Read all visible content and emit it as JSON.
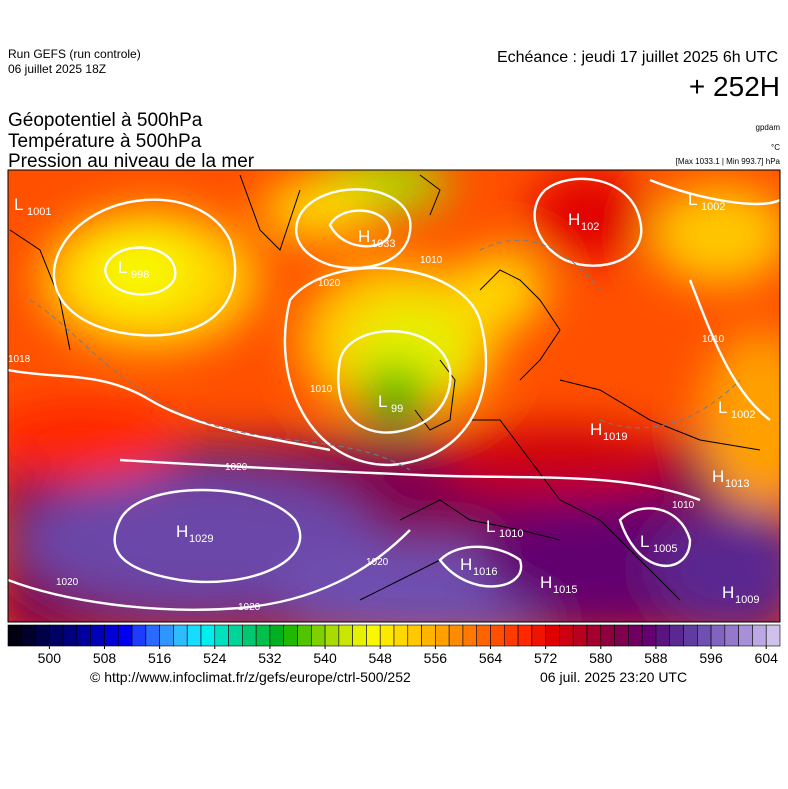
{
  "header": {
    "run": "Run GEFS (run controle)",
    "run_date": "06 juillet 2025 18Z",
    "echeance": "Echéance : jeudi 17 juillet 2025 6h UTC",
    "lead": "+ 252H",
    "titles": [
      "Géopotentiel à 500hPa",
      "Température à 500hPa",
      "Pression au niveau de la mer"
    ],
    "unit_geo": "gpdam",
    "unit_temp": "°C",
    "max_min": "[Max 1033.1 | Min 993.7] hPa"
  },
  "pressure_centers": [
    {
      "letter": "L",
      "value": "1001"
    },
    {
      "letter": "H",
      "value": "1033"
    },
    {
      "letter": "H",
      "value": "102"
    },
    {
      "letter": "L",
      "value": "1002"
    },
    {
      "letter": "L",
      "value": "998"
    },
    {
      "letter": "L",
      "value": "99"
    },
    {
      "letter": "H",
      "value": "1019"
    },
    {
      "letter": "L",
      "value": "1002"
    },
    {
      "letter": "H",
      "value": "1013"
    },
    {
      "letter": "H",
      "value": "1029"
    },
    {
      "letter": "L",
      "value": "1010"
    },
    {
      "letter": "L",
      "value": "1005"
    },
    {
      "letter": "H",
      "value": "1016"
    },
    {
      "letter": "H",
      "value": "1015"
    },
    {
      "letter": "H",
      "value": "1009"
    }
  ],
  "contour_labels": [
    "1018",
    "1010",
    "1020",
    "1010",
    "1020",
    "1020",
    "1020",
    "1020",
    "1010",
    "1010"
  ],
  "colorbar": {
    "min": 494,
    "max": 606,
    "ticks": [
      500,
      508,
      516,
      524,
      532,
      540,
      548,
      556,
      564,
      572,
      580,
      588,
      596,
      604
    ],
    "colors": [
      "#000010",
      "#00002a",
      "#000046",
      "#000064",
      "#00007f",
      "#00009c",
      "#0000b8",
      "#0000d4",
      "#0000f0",
      "#1e3cff",
      "#2a6aff",
      "#2f96ff",
      "#2fbcff",
      "#16dcff",
      "#00eeee",
      "#00e0c0",
      "#00d49a",
      "#00c870",
      "#00bf4a",
      "#00b020",
      "#20b800",
      "#50c400",
      "#80d000",
      "#a8dc00",
      "#c8e600",
      "#e6f000",
      "#f8f800",
      "#ffe800",
      "#ffd800",
      "#ffc800",
      "#ffb400",
      "#ffa000",
      "#ff8c00",
      "#ff7800",
      "#ff6400",
      "#ff5000",
      "#ff3c00",
      "#ff2800",
      "#f01400",
      "#e00000",
      "#cc0010",
      "#b80020",
      "#a40030",
      "#900040",
      "#800050",
      "#700060",
      "#640070",
      "#5a1480",
      "#5a2890",
      "#603ca0",
      "#6e50b0",
      "#8064c0",
      "#9478cc",
      "#a890d8",
      "#bca8e2",
      "#d0c0ec"
    ]
  },
  "footer": {
    "url": "© http://www.infoclimat.fr/z/gefs/europe/ctrl-500/252",
    "issued": "06 juil. 2025 23:20 UTC"
  }
}
